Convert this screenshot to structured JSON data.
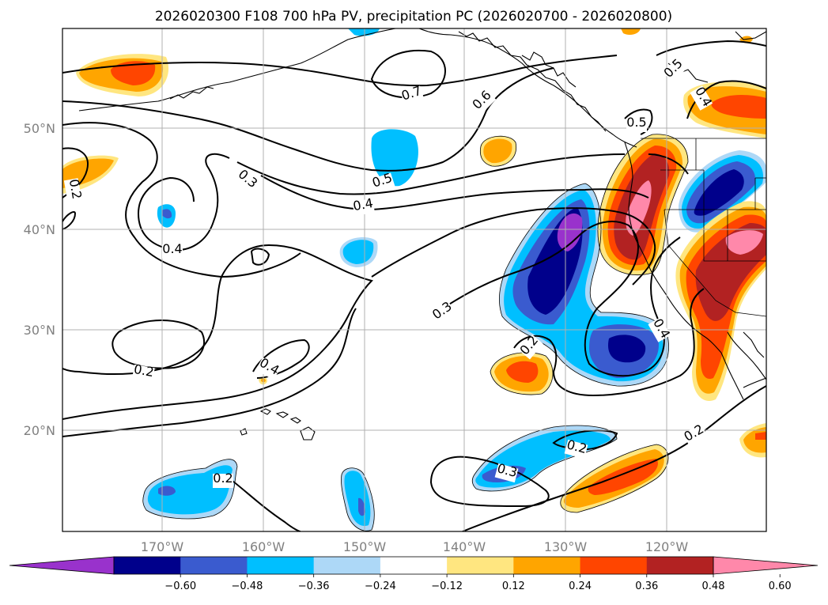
{
  "title": "2026020300 F108 700 hPa PV, precipitation PC (2026020700 - 2026020800)",
  "lon_labels": [
    "170°W",
    "160°W",
    "150°W",
    "140°W",
    "130°W",
    "120°W"
  ],
  "lat_labels": [
    "50°N",
    "40°N",
    "30°N",
    "20°N"
  ],
  "map_extent": {
    "lon_min": -180,
    "lon_max": -110,
    "lat_min": 10,
    "lat_max": 60
  },
  "colorbar": {
    "ticks": [
      "−0.60",
      "−0.48",
      "−0.36",
      "−0.24",
      "−0.12",
      "0.12",
      "0.24",
      "0.36",
      "0.48",
      "0.60"
    ],
    "colors": [
      "#9932cc",
      "#00008b",
      "#3a5bcf",
      "#00bfff",
      "#add8f7",
      "#ffffff",
      "#ffe680",
      "#ffa500",
      "#ff4500",
      "#b22222",
      "#ff88aa"
    ],
    "extend": "both"
  },
  "contour_labels": [
    {
      "text": "0.7"
    },
    {
      "text": "0.6"
    },
    {
      "text": "0.5"
    },
    {
      "text": "0.5"
    },
    {
      "text": "0.5"
    },
    {
      "text": "0.4"
    },
    {
      "text": "0.4"
    },
    {
      "text": "0.4"
    },
    {
      "text": "0.4"
    },
    {
      "text": "0.4"
    },
    {
      "text": "0.3"
    },
    {
      "text": "0.3"
    },
    {
      "text": "0.3"
    },
    {
      "text": "0.2"
    },
    {
      "text": "0.2"
    },
    {
      "text": "0.2"
    },
    {
      "text": "0.2"
    },
    {
      "text": "0.2"
    },
    {
      "text": "0.2"
    }
  ]
}
